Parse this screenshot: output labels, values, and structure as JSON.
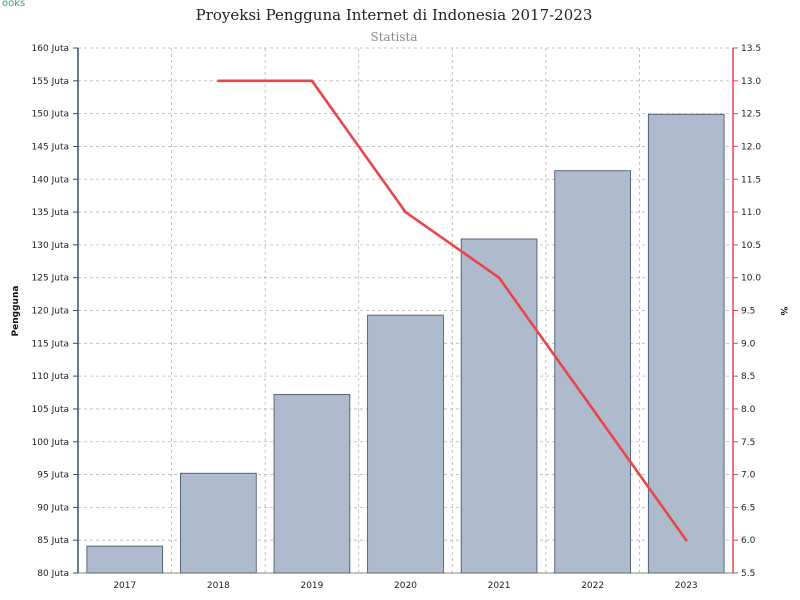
{
  "brand": {
    "logo_text": "ooks"
  },
  "chart_data": {
    "type": "bar",
    "title": "Proyeksi Pengguna Internet di Indonesia 2017-2023",
    "subtitle": "Statista",
    "categories": [
      "2017",
      "2018",
      "2019",
      "2020",
      "2021",
      "2022",
      "2023"
    ],
    "series": [
      {
        "type": "bar",
        "axis": "left",
        "color": "#aebbcc",
        "values": [
          84.1,
          95.2,
          107.2,
          119.3,
          130.9,
          141.3,
          149.9
        ]
      },
      {
        "type": "line",
        "axis": "right",
        "color": "#e8474a",
        "values": [
          null,
          13.0,
          13.0,
          11.0,
          10.0,
          8.0,
          6.0
        ]
      }
    ],
    "ylabel": "Pengguna",
    "y2label": "%",
    "ylim": [
      80,
      160
    ],
    "y2lim": [
      5.5,
      13.5
    ],
    "yticks": [
      "80 Juta",
      "85 Juta",
      "90 Juta",
      "95 Juta",
      "100 Juta",
      "105 Juta",
      "110 Juta",
      "115 Juta",
      "120 Juta",
      "125 Juta",
      "130 Juta",
      "135 Juta",
      "140 Juta",
      "145 Juta",
      "150 Juta",
      "155 Juta",
      "160 Juta"
    ],
    "y2ticks": [
      "5.5",
      "6.0",
      "6.5",
      "7.0",
      "7.5",
      "8.0",
      "8.5",
      "9.0",
      "9.5",
      "10.0",
      "10.5",
      "11.0",
      "11.5",
      "12.0",
      "12.5",
      "13.0",
      "13.5"
    ],
    "grid": true,
    "legend": "none",
    "colors": {
      "left_axis": "#3a4e6e",
      "right_axis": "#e8474a",
      "bar_stroke": "#3a4a66",
      "grid": "#b8b8b8"
    }
  }
}
